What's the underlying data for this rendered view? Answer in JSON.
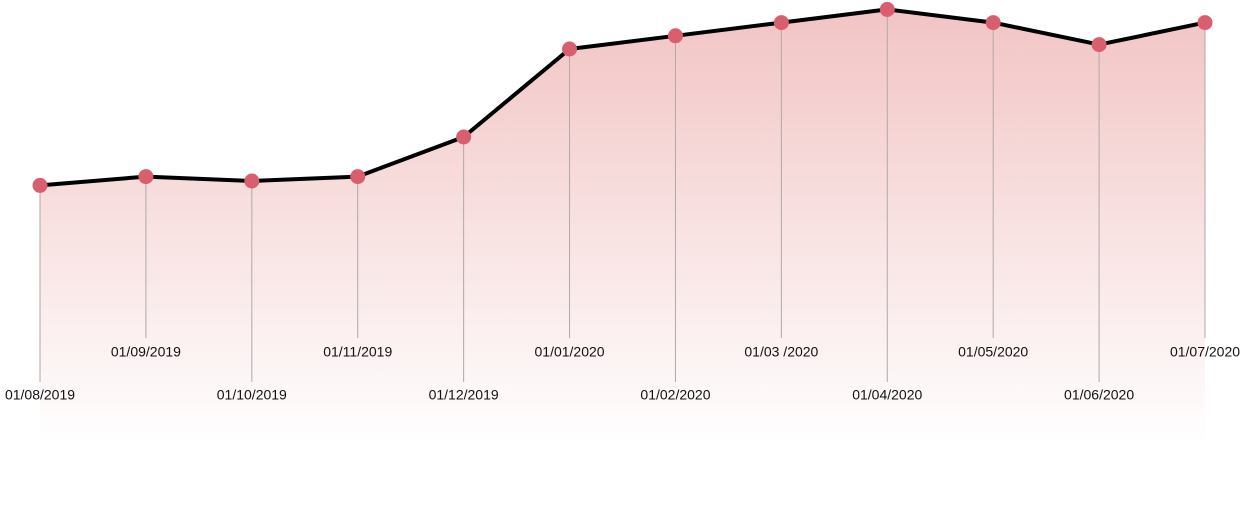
{
  "chart_data": {
    "type": "line",
    "categories": [
      "01/08/2019",
      "01/09/2019",
      "01/10/2019",
      "01/11/2019",
      "01/12/2019",
      "01/01/2020",
      "01/02/2020",
      "01/03 /2020",
      "01/04/2020",
      "01/05/2020",
      "01/06/2020",
      "01/07/2020"
    ],
    "values": [
      59,
      61,
      60,
      61,
      70,
      90,
      93,
      96,
      99,
      96,
      91,
      96
    ],
    "ylim": [
      0,
      100
    ],
    "color": "#d95f6e",
    "line_color": "#000000",
    "fill_color": "#f2c4c4"
  }
}
